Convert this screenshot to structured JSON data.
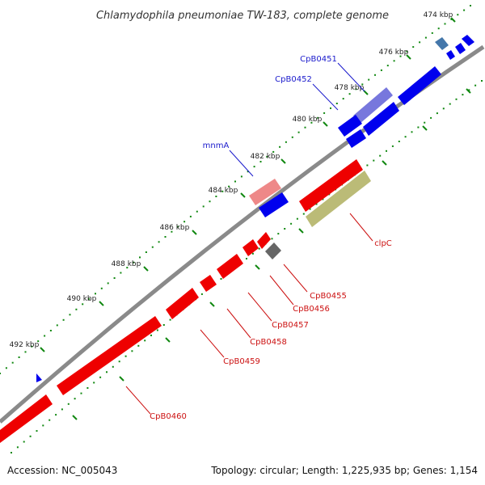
{
  "title": "Chlamydophila pneumoniae TW-183, complete genome",
  "footer": {
    "accession": "Accession: NC_005043",
    "summary": "Topology: circular; Length: 1,225,935 bp; Genes: 1,154"
  },
  "colors": {
    "backbone": "#8a8a8a",
    "forward": "#0000ee",
    "reverse": "#ee0000",
    "ticks": "#118811",
    "forward_label": "#1a1acc",
    "reverse_label": "#cc1111"
  },
  "ticks": [
    {
      "label": "474 kbp"
    },
    {
      "label": "476 kbp"
    },
    {
      "label": "478 kbp"
    },
    {
      "label": "480 kbp"
    },
    {
      "label": "482 kbp"
    },
    {
      "label": "484 kbp"
    },
    {
      "label": "486 kbp"
    },
    {
      "label": "488 kbp"
    },
    {
      "label": "490 kbp"
    },
    {
      "label": "492 kbp"
    }
  ],
  "forward_genes": [
    {
      "label": "CpB0451",
      "color": "#7777dd"
    },
    {
      "label": "CpB0452",
      "color": "#0000ee"
    },
    {
      "label": "mnmA",
      "color": "#ee8888"
    }
  ],
  "reverse_genes": [
    {
      "label": "clpC",
      "color": "#bbbb77"
    },
    {
      "label": "CpB0455",
      "color": "#666666"
    },
    {
      "label": "CpB0456",
      "color": "#ee0000"
    },
    {
      "label": "CpB0457",
      "color": "#ee0000"
    },
    {
      "label": "CpB0458",
      "color": "#ee0000"
    },
    {
      "label": "CpB0459",
      "color": "#ee0000"
    },
    {
      "label": "CpB0460",
      "color": "#ee0000"
    }
  ]
}
